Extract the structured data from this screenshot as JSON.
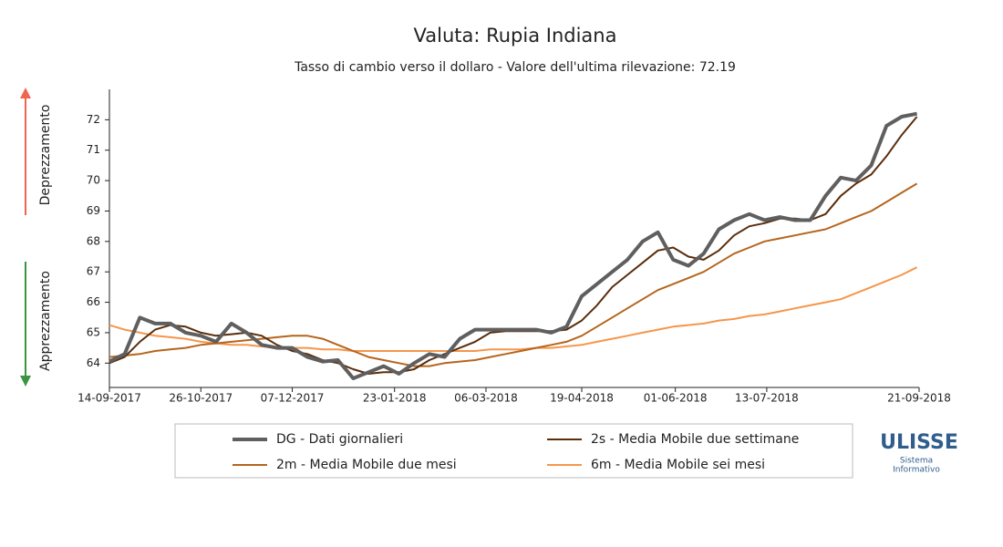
{
  "chart_data": {
    "type": "line",
    "title": "Valuta: Rupia Indiana",
    "subtitle": "Tasso di cambio verso il dollaro - Valore dell'ultima rilevazione: 72.19",
    "annotations": [
      "Deprezzamento",
      "Apprezzamento"
    ],
    "x": [
      "14-09-2017",
      "21-09-2017",
      "28-09-2017",
      "05-10-2017",
      "12-10-2017",
      "19-10-2017",
      "26-10-2017",
      "02-11-2017",
      "09-11-2017",
      "16-11-2017",
      "23-11-2017",
      "30-11-2017",
      "07-12-2017",
      "14-12-2017",
      "21-12-2017",
      "28-12-2017",
      "04-01-2018",
      "11-01-2018",
      "18-01-2018",
      "25-01-2018",
      "01-02-2018",
      "08-02-2018",
      "15-02-2018",
      "22-02-2018",
      "01-03-2018",
      "08-03-2018",
      "15-03-2018",
      "22-03-2018",
      "29-03-2018",
      "05-04-2018",
      "12-04-2018",
      "19-04-2018",
      "26-04-2018",
      "03-05-2018",
      "10-05-2018",
      "17-05-2018",
      "24-05-2018",
      "31-05-2018",
      "07-06-2018",
      "14-06-2018",
      "21-06-2018",
      "28-06-2018",
      "05-07-2018",
      "12-07-2018",
      "19-07-2018",
      "26-07-2018",
      "02-08-2018",
      "09-08-2018",
      "16-08-2018",
      "23-08-2018",
      "30-08-2018",
      "06-09-2018",
      "13-09-2018",
      "20-09-2018"
    ],
    "series": [
      {
        "name": "DG - Dati giornalieri",
        "color": "#5f5f5f",
        "width": 4,
        "values": [
          64.05,
          64.3,
          65.5,
          65.3,
          65.3,
          65.0,
          64.9,
          64.7,
          65.3,
          65.0,
          64.6,
          64.5,
          64.5,
          64.2,
          64.05,
          64.1,
          63.5,
          63.7,
          63.9,
          63.65,
          64.0,
          64.3,
          64.2,
          64.8,
          65.1,
          65.1,
          65.1,
          65.1,
          65.1,
          65.0,
          65.2,
          66.2,
          66.6,
          67.0,
          67.4,
          68.0,
          68.3,
          67.4,
          67.2,
          67.6,
          68.4,
          68.7,
          68.9,
          68.7,
          68.8,
          68.7,
          68.7,
          69.5,
          70.1,
          70.0,
          70.5,
          71.8,
          72.1,
          72.2
        ]
      },
      {
        "name": "2s - Media Mobile due settimane",
        "color": "#5a2d0c",
        "width": 2,
        "values": [
          64.0,
          64.2,
          64.7,
          65.1,
          65.25,
          65.2,
          65.0,
          64.9,
          64.95,
          65.0,
          64.9,
          64.6,
          64.4,
          64.3,
          64.1,
          64.0,
          63.8,
          63.65,
          63.7,
          63.7,
          63.8,
          64.1,
          64.3,
          64.5,
          64.7,
          65.0,
          65.05,
          65.05,
          65.05,
          65.05,
          65.1,
          65.4,
          65.9,
          66.5,
          66.9,
          67.3,
          67.7,
          67.8,
          67.5,
          67.4,
          67.7,
          68.2,
          68.5,
          68.6,
          68.75,
          68.75,
          68.7,
          68.9,
          69.5,
          69.9,
          70.2,
          70.8,
          71.5,
          72.1
        ]
      },
      {
        "name": "2m - Media Mobile due mesi",
        "color": "#b5651d",
        "width": 2,
        "values": [
          64.2,
          64.25,
          64.3,
          64.4,
          64.45,
          64.5,
          64.6,
          64.65,
          64.7,
          64.75,
          64.8,
          64.85,
          64.9,
          64.9,
          64.8,
          64.6,
          64.4,
          64.2,
          64.1,
          64.0,
          63.9,
          63.9,
          64.0,
          64.05,
          64.1,
          64.2,
          64.3,
          64.4,
          64.5,
          64.6,
          64.7,
          64.9,
          65.2,
          65.5,
          65.8,
          66.1,
          66.4,
          66.6,
          66.8,
          67.0,
          67.3,
          67.6,
          67.8,
          68.0,
          68.1,
          68.2,
          68.3,
          68.4,
          68.6,
          68.8,
          69.0,
          69.3,
          69.6,
          69.9
        ]
      },
      {
        "name": "6m - Media Mobile sei mesi",
        "color": "#f5964b",
        "width": 2,
        "values": [
          65.25,
          65.1,
          65.0,
          64.9,
          64.85,
          64.8,
          64.7,
          64.65,
          64.6,
          64.6,
          64.55,
          64.5,
          64.5,
          64.5,
          64.45,
          64.45,
          64.4,
          64.4,
          64.4,
          64.4,
          64.4,
          64.4,
          64.4,
          64.4,
          64.4,
          64.45,
          64.45,
          64.45,
          64.5,
          64.5,
          64.55,
          64.6,
          64.7,
          64.8,
          64.9,
          65.0,
          65.1,
          65.2,
          65.25,
          65.3,
          65.4,
          65.45,
          65.55,
          65.6,
          65.7,
          65.8,
          65.9,
          66.0,
          66.1,
          66.3,
          66.5,
          66.7,
          66.9,
          67.15
        ]
      }
    ],
    "xlim": [
      "14-09-2017",
      "21-09-2018"
    ],
    "xticks": [
      "14-09-2017",
      "26-10-2017",
      "07-12-2017",
      "23-01-2018",
      "06-03-2018",
      "19-04-2018",
      "01-06-2018",
      "13-07-2018",
      "21-09-2018"
    ],
    "ylim": [
      63.2,
      73
    ],
    "yticks": [
      64,
      65,
      66,
      67,
      68,
      69,
      70,
      71,
      72
    ],
    "grid": false
  },
  "logo": {
    "name": "ULISSE",
    "line1": "Sistema",
    "line2": "Informativo"
  }
}
